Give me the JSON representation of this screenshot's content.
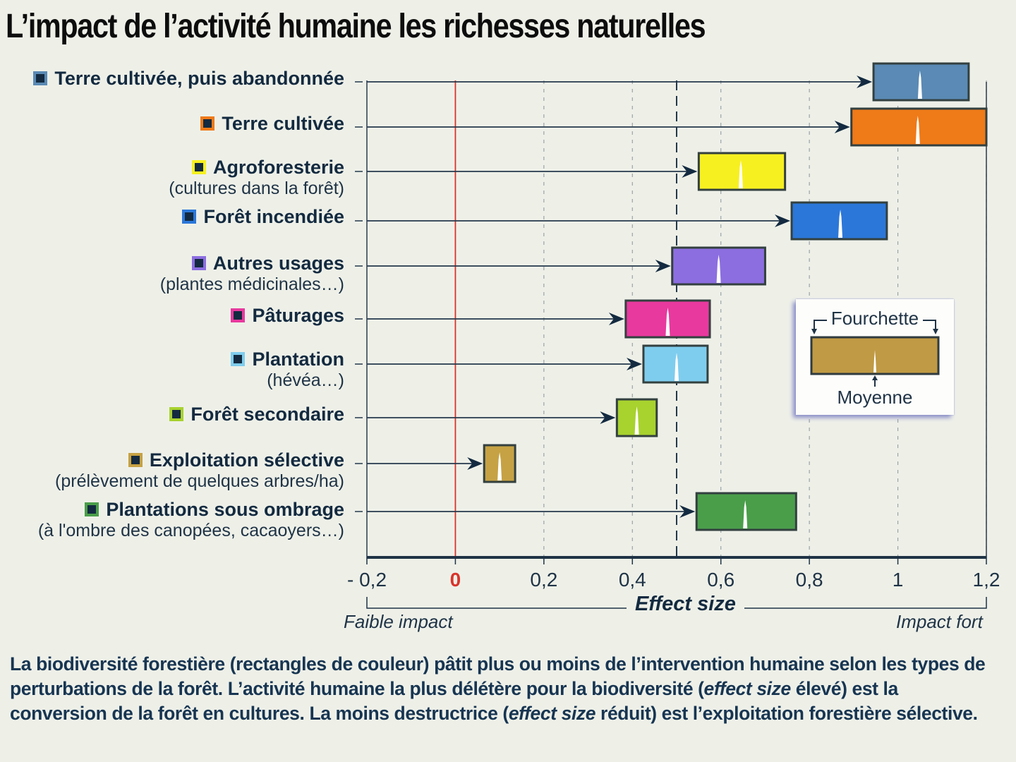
{
  "title": "L’impact de l’activité humaine les richesses naturelles",
  "legend": {
    "range_label": "Fourchette",
    "mean_label": "Moyenne",
    "sample_color": "#c09a44"
  },
  "axis": {
    "title": "Effect size",
    "left_note": "Faible impact",
    "right_note": "Impact fort",
    "tick_labels": [
      "- 0,2",
      "0",
      "0,2",
      "0,4",
      "0,6",
      "0,8",
      "1",
      "1,2"
    ],
    "zero_color": "#d9342b"
  },
  "caption": {
    "part1": "La biodiversité forestière (rectangles de couleur) pâtit plus ou moins de l’intervention humaine selon les types de perturbations de la forêt. L’activité humaine la plus délétère pour la biodiversité (",
    "em1": "effect size",
    "part2": " élevé) est la conversion de la forêt en cultures. La moins destructrice (",
    "em2": "effect size",
    "part3": " réduit) est l’exploitation forestière sélective."
  },
  "chart_data": {
    "type": "range-bar",
    "title": "L’impact de l’activité humaine les richesses naturelles",
    "xlabel": "Effect size",
    "ylabel": "",
    "xlim": [
      -0.2,
      1.2
    ],
    "xticks": [
      -0.2,
      0,
      0.2,
      0.4,
      0.6,
      0.8,
      1.0,
      1.2
    ],
    "reference_lines": [
      {
        "value": 0,
        "style": "solid",
        "color": "#d9342b"
      },
      {
        "value": 0.5,
        "style": "dashed",
        "color": "#24384c"
      }
    ],
    "grid": true,
    "legend_position": "right",
    "categories": [
      {
        "label": "Terre cultivée, puis abandonnée",
        "sublabel": "",
        "color": "#5a8ab5",
        "low": 0.945,
        "mean": 1.05,
        "high": 1.16
      },
      {
        "label": "Terre cultivée",
        "sublabel": "",
        "color": "#ef7a18",
        "low": 0.895,
        "mean": 1.045,
        "high": 1.2
      },
      {
        "label": "Agroforesterie",
        "sublabel": "(cultures dans la forêt)",
        "color": "#f7f020",
        "low": 0.55,
        "mean": 0.645,
        "high": 0.745
      },
      {
        "label": "Forêt incendiée",
        "sublabel": "",
        "color": "#2b77d9",
        "low": 0.76,
        "mean": 0.87,
        "high": 0.975
      },
      {
        "label": "Autres usages",
        "sublabel": "(plantes médicinales…)",
        "color": "#8c6ee0",
        "low": 0.49,
        "mean": 0.595,
        "high": 0.7
      },
      {
        "label": "Pâturages",
        "sublabel": "",
        "color": "#e8399e",
        "low": 0.385,
        "mean": 0.48,
        "high": 0.575
      },
      {
        "label": "Plantation",
        "sublabel": "(hévéa…)",
        "color": "#7fcdee",
        "low": 0.425,
        "mean": 0.5,
        "high": 0.57
      },
      {
        "label": "Forêt secondaire",
        "sublabel": "",
        "color": "#a8d22e",
        "low": 0.365,
        "mean": 0.41,
        "high": 0.455
      },
      {
        "label": "Exploitation sélective",
        "sublabel": "(prélèvement de quelques arbres/ha)",
        "color": "#c6a244",
        "low": 0.065,
        "mean": 0.1,
        "high": 0.135
      },
      {
        "label": "Plantations sous ombrage",
        "sublabel": "(à l'ombre des canopées, cacaoyers…)",
        "color": "#4a9e4a",
        "low": 0.545,
        "mean": 0.655,
        "high": 0.77
      }
    ]
  }
}
